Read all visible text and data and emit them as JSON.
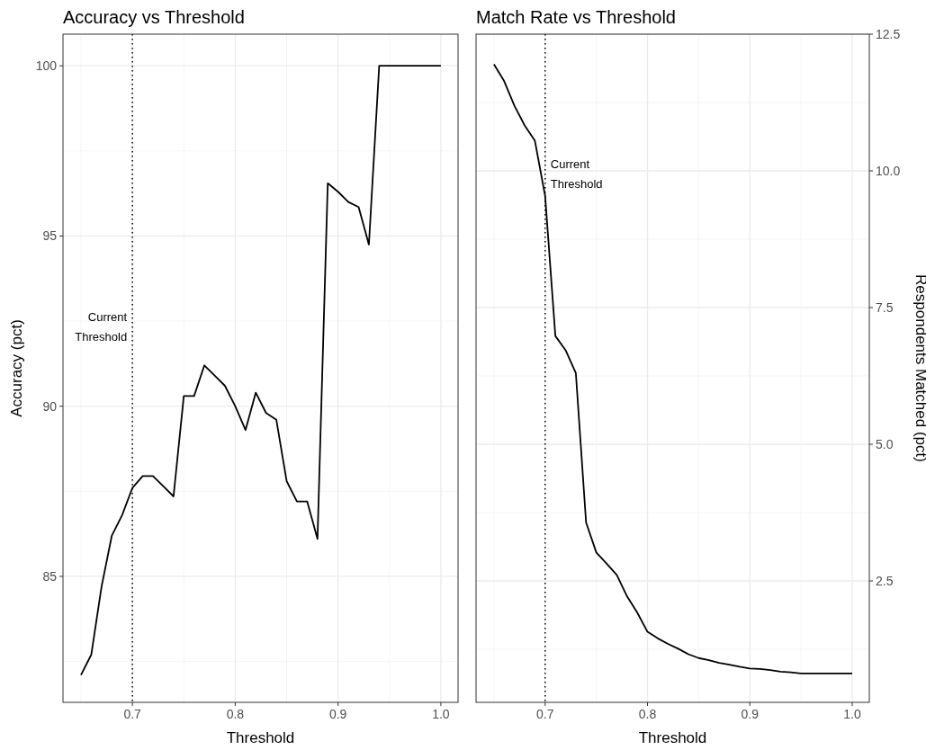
{
  "chart_data": [
    {
      "type": "line",
      "title": "Accuracy vs Threshold",
      "xlabel": "Threshold",
      "ylabel": "Accuracy (pct)",
      "xlim": [
        0.6325,
        1.0167
      ],
      "xticks": [
        0.7,
        0.8,
        0.9,
        {
          "value": 1,
          "label": "1.0"
        }
      ],
      "ylim": [
        81.3,
        100.93
      ],
      "yticks": [
        85,
        90,
        95,
        100
      ],
      "grid": true,
      "line_style": "solid",
      "x": [
        0.65,
        0.66,
        0.67,
        0.68,
        0.69,
        0.7,
        0.71,
        0.72,
        0.73,
        0.74,
        0.75,
        0.76,
        0.77,
        0.78,
        0.79,
        0.8,
        0.81,
        0.82,
        0.83,
        0.84,
        0.85,
        0.86,
        0.87,
        0.88,
        0.89,
        0.9,
        0.91,
        0.92,
        0.93,
        0.94,
        0.95,
        0.96,
        0.97,
        0.98,
        0.99,
        1.0
      ],
      "series": [
        {
          "color": "#000000",
          "values": [
            82.1,
            82.7,
            84.7,
            86.2,
            86.8,
            87.6,
            87.95,
            87.95,
            87.65,
            87.35,
            90.3,
            90.3,
            91.2,
            90.9,
            90.6,
            90.0,
            89.3,
            90.4,
            89.8,
            89.6,
            87.8,
            87.2,
            87.2,
            86.1,
            96.55,
            96.3,
            96.0,
            95.85,
            94.75,
            100,
            100,
            100,
            100,
            100,
            100,
            100
          ]
        }
      ],
      "ref_lines": [
        {
          "axis": "x",
          "value": 0.7,
          "label": "Current Threshold",
          "line_style": "dotted",
          "color": "#000000"
        }
      ]
    },
    {
      "type": "line",
      "title": "Match Rate vs Threshold",
      "xlabel": "Threshold",
      "y2label": "Respondents Matched (pct)",
      "xlim": [
        0.6325,
        1.0167
      ],
      "xticks": [
        0.7,
        0.8,
        0.9,
        {
          "value": 1,
          "label": "1.0"
        }
      ],
      "y2lim": [
        0.28,
        12.5
      ],
      "y2ticks": [
        {
          "value": 2.5,
          "label": "2.5"
        },
        {
          "value": 5,
          "label": "5.0"
        },
        {
          "value": 7.5,
          "label": "7.5"
        },
        {
          "value": 10,
          "label": "10.0"
        },
        {
          "value": 12.5,
          "label": "12.5"
        }
      ],
      "grid": true,
      "line_style": "solid",
      "x": [
        0.65,
        0.66,
        0.67,
        0.68,
        0.69,
        0.7,
        0.71,
        0.72,
        0.73,
        0.74,
        0.75,
        0.76,
        0.77,
        0.78,
        0.79,
        0.8,
        0.81,
        0.82,
        0.83,
        0.84,
        0.85,
        0.86,
        0.87,
        0.88,
        0.89,
        0.9,
        0.91,
        0.92,
        0.93,
        0.94,
        0.95,
        0.96,
        0.97,
        0.98,
        0.99,
        1.0
      ],
      "series": [
        {
          "color": "#000000",
          "axis": "y2",
          "values": [
            11.95,
            11.64,
            11.19,
            10.83,
            10.55,
            9.54,
            6.98,
            6.72,
            6.3,
            3.57,
            3.02,
            2.82,
            2.61,
            2.22,
            1.92,
            1.57,
            1.45,
            1.35,
            1.26,
            1.16,
            1.09,
            1.05,
            1.0,
            0.97,
            0.93,
            0.9,
            0.89,
            0.87,
            0.84,
            0.83,
            0.81,
            0.81,
            0.81,
            0.81,
            0.81,
            0.81
          ]
        }
      ],
      "ref_lines": [
        {
          "axis": "x",
          "value": 0.7,
          "label": "Current Threshold",
          "line_style": "dotted",
          "color": "#000000"
        }
      ]
    }
  ]
}
